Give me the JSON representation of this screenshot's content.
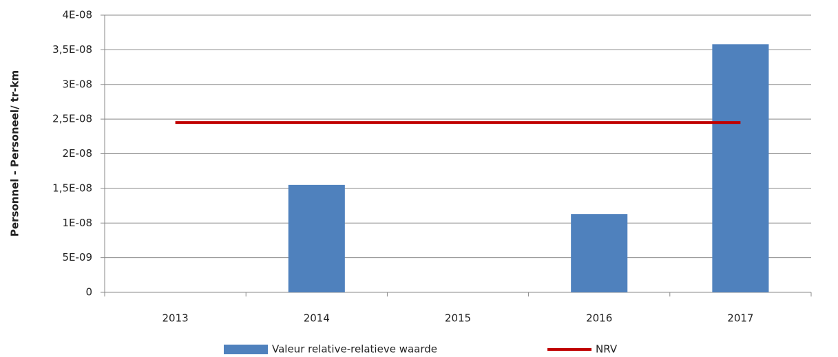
{
  "chart_data": {
    "type": "bar",
    "ylabel": "Personnel - Personeel/ tr-km",
    "categories": [
      "2013",
      "2014",
      "2015",
      "2016",
      "2017"
    ],
    "series": [
      {
        "name": "Valeur relative-relatieve waarde",
        "color": "#4f81bd",
        "values": [
          0,
          1.55e-08,
          0,
          1.13e-08,
          3.58e-08
        ]
      },
      {
        "name": "NRV",
        "color": "#c00000",
        "type": "line",
        "values": [
          2.45e-08,
          2.45e-08,
          2.45e-08,
          2.45e-08,
          2.45e-08
        ]
      }
    ],
    "ylim": [
      0,
      4e-08
    ],
    "yticks": [
      0,
      {
        "value": 5e-09,
        "label": "5E-09"
      },
      {
        "value": 1e-08,
        "label": "1E-08"
      },
      {
        "value": 1.5e-08,
        "label": "1,5E-08"
      },
      {
        "value": 2e-08,
        "label": "2E-08"
      },
      {
        "value": 2.5e-08,
        "label": "2,5E-08"
      },
      {
        "value": 3e-08,
        "label": "3E-08"
      },
      {
        "value": 3.5e-08,
        "label": "3,5E-08"
      },
      {
        "value": 4e-08,
        "label": "4E-08"
      }
    ],
    "grid": true,
    "legend": "bottom"
  }
}
